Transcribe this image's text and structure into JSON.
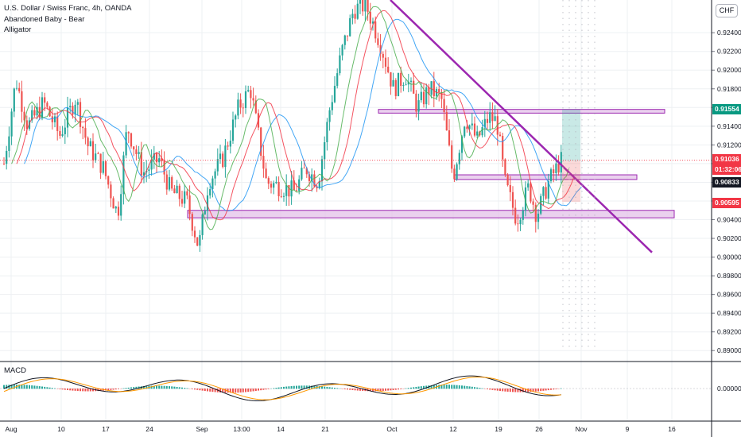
{
  "header": {
    "symbol_line": "U.S. Dollar / Swiss Franc, 4h, OANDA",
    "pattern_line": "Abandoned Baby - Bear",
    "indicator_line": "Alligator",
    "macd_label": "MACD",
    "currency": "CHF"
  },
  "chart_data": {
    "type": "candlestick",
    "symbol": "U.S. Dollar / Swiss Franc",
    "interval": "4h",
    "source": "OANDA",
    "overlays": [
      "Abandoned Baby - Bear",
      "Alligator"
    ],
    "y_axis": {
      "range": [
        0.889,
        0.9275
      ],
      "ticks": [
        "0.92400",
        "0.92200",
        "0.92000",
        "0.91800",
        "0.91600",
        "0.91400",
        "0.91200",
        "0.91000",
        "0.90800",
        "0.90600",
        "0.90400",
        "0.90200",
        "0.90000",
        "0.89800",
        "0.89600",
        "0.89400",
        "0.89200",
        "0.89000"
      ]
    },
    "x_axis": {
      "ticks": [
        "Aug",
        "10",
        "17",
        "24",
        "Sep",
        "13:00",
        "14",
        "21",
        "Oct",
        "12",
        "19",
        "26",
        "Nov",
        "9",
        "16"
      ]
    },
    "price_tags": [
      {
        "label": "0.91554",
        "value": 0.91554,
        "color": "#089981"
      },
      {
        "label": "0.91036",
        "value": 0.91036,
        "color": "#f23645"
      },
      {
        "label": "01:32:06",
        "value": 0.9088,
        "color": "#f23645"
      },
      {
        "label": "0.90833",
        "value": 0.90833,
        "color": "#131722"
      },
      {
        "label": "0.90595",
        "value": 0.90595,
        "color": "#f23645"
      }
    ],
    "current_price": 0.91036,
    "zones": [
      {
        "name": "resistance",
        "low": 0.9154,
        "high": 0.9158
      },
      {
        "name": "mid",
        "low": 0.9083,
        "high": 0.9088
      },
      {
        "name": "support",
        "low": 0.9042,
        "high": 0.905
      }
    ],
    "trendline": {
      "from": [
        "Sep 28",
        0.9275
      ],
      "to": [
        "Nov 12",
        0.9005
      ]
    },
    "macd": {
      "zero_label": "0.00000"
    },
    "colors": {
      "up": "#26a69a",
      "down": "#ef5350",
      "trend": "#9c27b0",
      "zone_fill": "#e1bee7",
      "zone_border": "#9c27b0",
      "jaw": "#2196f3",
      "teeth": "#f23645",
      "lips": "#4caf50"
    }
  }
}
